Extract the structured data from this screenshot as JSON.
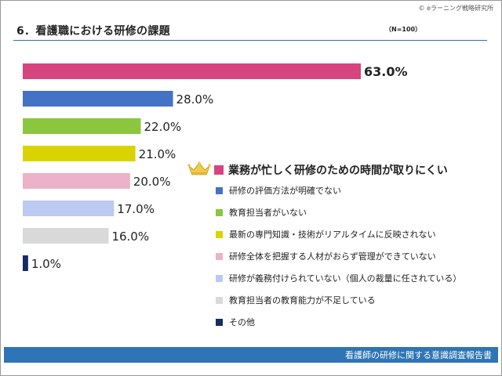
{
  "header": {
    "copyright": "© eラーニング戦略研究所",
    "title": "6．看護職における研修の課題",
    "sample": "（N=100）"
  },
  "chart_data": {
    "type": "bar",
    "orientation": "horizontal",
    "unit": "%",
    "categories": [
      "業務が忙しく研修のための時間が取りにくい",
      "研修の評価方法が明確でない",
      "教育担当者がいない",
      "最新の専門知識・技術がリアルタイムに反映されない",
      "研修全体を把握する人材がおらず管理ができていない",
      "研修が義務付けられていない（個人の裁量に任されている）",
      "教育担当者の教育能力が不足している",
      "その他"
    ],
    "values": [
      63.0,
      28.0,
      22.0,
      21.0,
      20.0,
      17.0,
      16.0,
      1.0
    ],
    "value_labels": [
      "63.0%",
      "28.0%",
      "22.0%",
      "21.0%",
      "20.0%",
      "17.0%",
      "16.0%",
      "1.0%"
    ],
    "colors": [
      "#d6457f",
      "#4472c4",
      "#8cc63f",
      "#d9d400",
      "#ebb2c8",
      "#bcc9f0",
      "#d9d9d9",
      "#132d63"
    ],
    "xlim": [
      0,
      100
    ],
    "legend_position": "right",
    "highlight_index": 0
  },
  "footer": {
    "text": "看護師の研修に関する意識調査報告書",
    "color": "#2f75b5"
  }
}
